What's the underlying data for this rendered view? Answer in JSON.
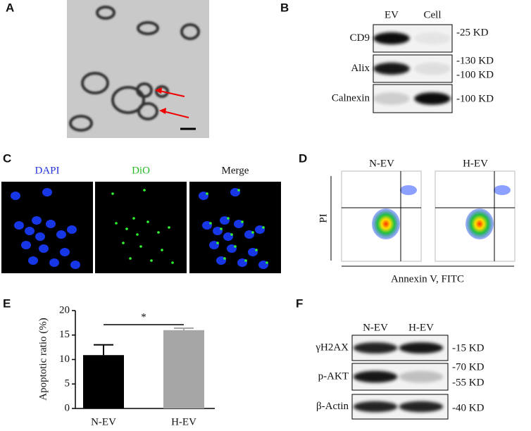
{
  "panels": {
    "a": {
      "label": "A"
    },
    "b": {
      "label": "B",
      "lanes": [
        "EV",
        "Cell"
      ],
      "rows": [
        {
          "name": "CD9",
          "markers": [
            "-25 KD"
          ]
        },
        {
          "name": "Alix",
          "markers": [
            "-130 KD",
            "-100 KD"
          ]
        },
        {
          "name": "Calnexin",
          "markers": [
            "-100 KD"
          ]
        }
      ]
    },
    "c": {
      "label": "C",
      "channels": [
        "DAPI",
        "DiO",
        "Merge"
      ]
    },
    "d": {
      "label": "D",
      "groups": [
        "N-EV",
        "H-EV"
      ],
      "y_label": "PI",
      "x_label": "Annexin V, FITC"
    },
    "e": {
      "label": "E"
    },
    "f": {
      "label": "F",
      "lanes": [
        "N-EV",
        "H-EV"
      ],
      "rows": [
        {
          "name": "γH2AX",
          "markers": [
            "-15 KD"
          ]
        },
        {
          "name": "p-AKT",
          "markers": [
            "-70 KD",
            "-55 KD"
          ]
        },
        {
          "name": "β-Actin",
          "markers": [
            "-40 KD"
          ]
        }
      ]
    }
  },
  "chart_data": {
    "type": "bar",
    "y_label": "Apoptotic ratio (%)",
    "categories": [
      "N-EV",
      "H-EV"
    ],
    "values": [
      10.9,
      16.0
    ],
    "errors": [
      2.1,
      0.4
    ],
    "colors": [
      "#000000",
      "#a6a6a7"
    ],
    "ylim": [
      0,
      20
    ],
    "yticks": [
      0,
      5,
      10,
      15,
      20
    ],
    "annotation": "*"
  }
}
